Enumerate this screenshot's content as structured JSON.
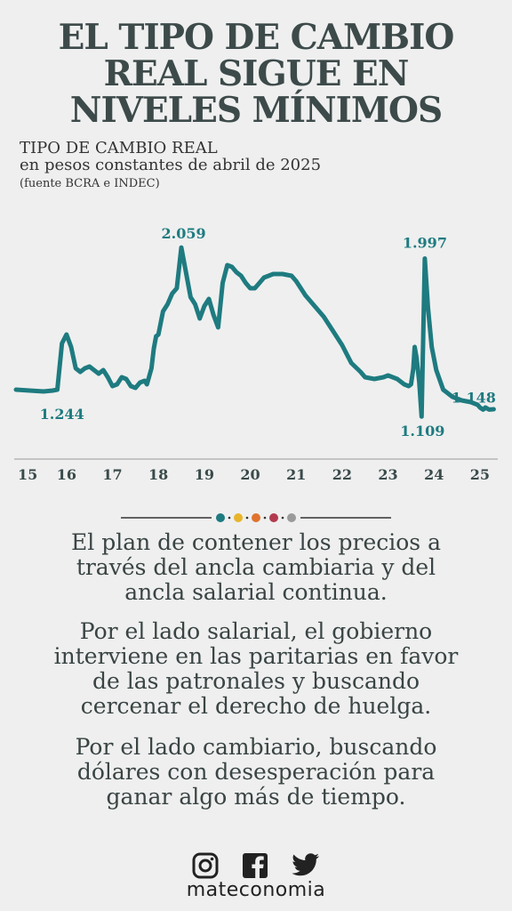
{
  "title": "EL TIPO DE CAMBIO\nREAL SIGUE EN\nNIVELES MÍNIMOS",
  "subtitle_1": "TIPO DE CAMBIO REAL",
  "subtitle_2": "en pesos constantes de abril de 2025",
  "subtitle_3": "(fuente BCRA e INDEC)",
  "colors": {
    "line": "#1e7b80",
    "text": "#3a4a4a",
    "dots": [
      "#1e7b80",
      "#e8b52a",
      "#e0742e",
      "#b33a4e",
      "#9a9a9a"
    ]
  },
  "chart_data": {
    "type": "line",
    "xlabel": "",
    "ylabel": "",
    "x_tick_labels": [
      "15",
      "16",
      "17",
      "18",
      "19",
      "20",
      "21",
      "22",
      "23",
      "24",
      "25"
    ],
    "x_ticks": [
      2015,
      2016,
      2017,
      2018,
      2019,
      2020,
      2021,
      2022,
      2023,
      2024,
      2025
    ],
    "xlim": [
      2014.9,
      2025.35
    ],
    "ylim": [
      1.0,
      2.15
    ],
    "grid": false,
    "annotations": [
      {
        "text": "1.244",
        "x": 2015.9,
        "y": 1.244
      },
      {
        "text": "2.059",
        "x": 2018.55,
        "y": 2.059
      },
      {
        "text": "1.997",
        "x": 2023.8,
        "y": 1.997
      },
      {
        "text": "1.109",
        "x": 2023.75,
        "y": 1.109
      },
      {
        "text": "1.148",
        "x": 2025.25,
        "y": 1.148
      }
    ],
    "series": [
      {
        "points": [
          [
            2014.9,
            1.26
          ],
          [
            2015.2,
            1.255
          ],
          [
            2015.5,
            1.25
          ],
          [
            2015.7,
            1.255
          ],
          [
            2015.8,
            1.26
          ],
          [
            2015.9,
            1.52
          ],
          [
            2016.0,
            1.57
          ],
          [
            2016.1,
            1.5
          ],
          [
            2016.2,
            1.38
          ],
          [
            2016.3,
            1.36
          ],
          [
            2016.4,
            1.38
          ],
          [
            2016.5,
            1.39
          ],
          [
            2016.6,
            1.37
          ],
          [
            2016.7,
            1.35
          ],
          [
            2016.8,
            1.37
          ],
          [
            2016.9,
            1.33
          ],
          [
            2017.0,
            1.28
          ],
          [
            2017.1,
            1.29
          ],
          [
            2017.2,
            1.33
          ],
          [
            2017.3,
            1.32
          ],
          [
            2017.4,
            1.28
          ],
          [
            2017.5,
            1.27
          ],
          [
            2017.6,
            1.3
          ],
          [
            2017.7,
            1.31
          ],
          [
            2017.75,
            1.29
          ],
          [
            2017.85,
            1.38
          ],
          [
            2017.9,
            1.49
          ],
          [
            2017.95,
            1.56
          ],
          [
            2018.0,
            1.57
          ],
          [
            2018.1,
            1.7
          ],
          [
            2018.2,
            1.74
          ],
          [
            2018.3,
            1.8
          ],
          [
            2018.4,
            1.83
          ],
          [
            2018.5,
            2.059
          ],
          [
            2018.6,
            1.92
          ],
          [
            2018.7,
            1.78
          ],
          [
            2018.8,
            1.74
          ],
          [
            2018.9,
            1.66
          ],
          [
            2019.0,
            1.73
          ],
          [
            2019.1,
            1.77
          ],
          [
            2019.2,
            1.68
          ],
          [
            2019.3,
            1.61
          ],
          [
            2019.4,
            1.86
          ],
          [
            2019.5,
            1.96
          ],
          [
            2019.6,
            1.95
          ],
          [
            2019.7,
            1.92
          ],
          [
            2019.8,
            1.9
          ],
          [
            2019.9,
            1.86
          ],
          [
            2020.0,
            1.83
          ],
          [
            2020.1,
            1.83
          ],
          [
            2020.2,
            1.86
          ],
          [
            2020.3,
            1.89
          ],
          [
            2020.4,
            1.9
          ],
          [
            2020.5,
            1.91
          ],
          [
            2020.7,
            1.91
          ],
          [
            2020.9,
            1.9
          ],
          [
            2021.0,
            1.87
          ],
          [
            2021.1,
            1.83
          ],
          [
            2021.2,
            1.79
          ],
          [
            2021.4,
            1.73
          ],
          [
            2021.6,
            1.67
          ],
          [
            2021.8,
            1.59
          ],
          [
            2022.0,
            1.51
          ],
          [
            2022.2,
            1.41
          ],
          [
            2022.4,
            1.36
          ],
          [
            2022.5,
            1.33
          ],
          [
            2022.7,
            1.32
          ],
          [
            2022.9,
            1.33
          ],
          [
            2023.0,
            1.34
          ],
          [
            2023.2,
            1.32
          ],
          [
            2023.35,
            1.29
          ],
          [
            2023.45,
            1.28
          ],
          [
            2023.5,
            1.29
          ],
          [
            2023.55,
            1.38
          ],
          [
            2023.58,
            1.5
          ],
          [
            2023.62,
            1.44
          ],
          [
            2023.68,
            1.3
          ],
          [
            2023.73,
            1.109
          ],
          [
            2023.8,
            1.997
          ],
          [
            2023.87,
            1.72
          ],
          [
            2023.95,
            1.5
          ],
          [
            2024.05,
            1.37
          ],
          [
            2024.2,
            1.26
          ],
          [
            2024.4,
            1.22
          ],
          [
            2024.6,
            1.2
          ],
          [
            2024.8,
            1.19
          ],
          [
            2024.95,
            1.175
          ],
          [
            2025.0,
            1.16
          ],
          [
            2025.07,
            1.148
          ],
          [
            2025.12,
            1.16
          ],
          [
            2025.2,
            1.148
          ],
          [
            2025.3,
            1.15
          ]
        ]
      }
    ]
  },
  "body": {
    "p1": "El plan de contener los precios a\ntravés del ancla cambiaria y del\nancla salarial continua.",
    "p2": "Por el lado salarial, el gobierno\ninterviene en las paritarias en favor\nde las patronales y buscando\ncercenar el derecho de huelga.",
    "p3": "Por el lado cambiario, buscando\ndólares con desesperación para\nganar algo más de tiempo."
  },
  "footer": {
    "icons": [
      "instagram-icon",
      "facebook-icon",
      "twitter-icon"
    ],
    "brand": "mateconomia"
  }
}
